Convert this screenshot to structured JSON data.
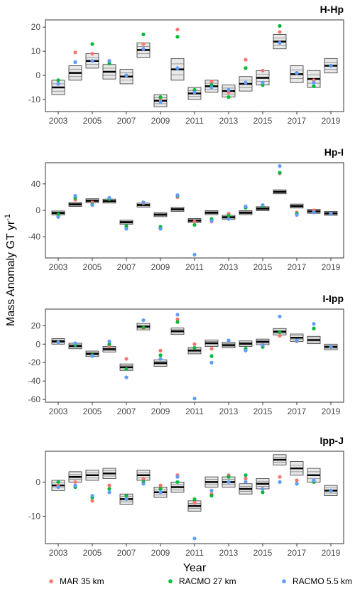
{
  "chart_data": {
    "type": "scatter",
    "ylabel": "Mass Anomaly GT yr",
    "ylabel_superscript": "-1",
    "xlabel": "Year",
    "x_tick_labels": [
      "2003",
      "2005",
      "2007",
      "2009",
      "2011",
      "2013",
      "2015",
      "2017",
      "2019"
    ],
    "years": [
      2003,
      2004,
      2005,
      2006,
      2007,
      2008,
      2009,
      2010,
      2011,
      2012,
      2013,
      2014,
      2015,
      2016,
      2017,
      2018,
      2019
    ],
    "series": [
      {
        "name": "MAR 35 km",
        "color": "#f8766d"
      },
      {
        "name": "RACMO 27 km",
        "color": "#00ba38"
      },
      {
        "name": "RACMO 5.5 km",
        "color": "#619cff"
      }
    ],
    "panels": [
      {
        "title": "H-Hp",
        "ylim": [
          -15,
          23
        ],
        "yticks": [
          -10,
          0,
          10,
          20
        ],
        "grace": [
          {
            "mean": -5,
            "half": 3
          },
          {
            "mean": 1,
            "half": 3
          },
          {
            "mean": 6,
            "half": 3
          },
          {
            "mean": 1.5,
            "half": 3
          },
          {
            "mean": -0.5,
            "half": 3
          },
          {
            "mean": 10.5,
            "half": 3
          },
          {
            "mean": -10.5,
            "half": 2.5
          },
          {
            "mean": 2.5,
            "half": 4.5
          },
          {
            "mean": -7.5,
            "half": 2.5
          },
          {
            "mean": -4.5,
            "half": 2.5
          },
          {
            "mean": -6.5,
            "half": 2.5
          },
          {
            "mean": -3.5,
            "half": 3
          },
          {
            "mean": -1,
            "half": 3
          },
          {
            "mean": 14,
            "half": 3
          },
          {
            "mean": 0.5,
            "half": 3.5
          },
          {
            "mean": -1.5,
            "half": 3.5
          },
          {
            "mean": 4,
            "half": 3
          }
        ],
        "points": [
          [
            -3.5,
            -2,
            -3.5
          ],
          [
            9.5,
            5.5,
            5.5
          ],
          [
            9,
            13,
            6
          ],
          [
            6,
            5,
            6
          ],
          [
            0,
            0,
            0
          ],
          [
            13,
            17,
            11
          ],
          [
            -10,
            -9,
            -11
          ],
          [
            19,
            16,
            3
          ],
          [
            -7,
            -6,
            -7
          ],
          [
            -2.5,
            -4,
            -5
          ],
          [
            -7,
            -9,
            -6
          ],
          [
            6.5,
            3,
            -3
          ],
          [
            2,
            -4,
            -3
          ],
          [
            18,
            20.5,
            13.5
          ],
          [
            1,
            1,
            1
          ],
          [
            -2,
            -4.5,
            -3
          ],
          [
            4,
            4,
            4
          ]
        ]
      },
      {
        "title": "Hp-I",
        "ylim": [
          -72,
          72
        ],
        "yticks": [
          -40,
          0,
          40
        ],
        "grace": [
          {
            "mean": -4,
            "half": 3
          },
          {
            "mean": 9,
            "half": 3
          },
          {
            "mean": 14.5,
            "half": 3
          },
          {
            "mean": 14,
            "half": 3
          },
          {
            "mean": -18,
            "half": 3
          },
          {
            "mean": 8,
            "half": 3
          },
          {
            "mean": -6.5,
            "half": 3
          },
          {
            "mean": 1.5,
            "half": 3
          },
          {
            "mean": -15.5,
            "half": 3
          },
          {
            "mean": -3.5,
            "half": 3
          },
          {
            "mean": -10.5,
            "half": 3
          },
          {
            "mean": -3.5,
            "half": 3
          },
          {
            "mean": 2.5,
            "half": 3
          },
          {
            "mean": 28,
            "half": 3
          },
          {
            "mean": 6.5,
            "half": 3
          },
          {
            "mean": -1.5,
            "half": 3
          },
          {
            "mean": -4.5,
            "half": 3
          }
        ],
        "points": [
          [
            -8,
            -6,
            -10
          ],
          [
            16,
            19,
            22
          ],
          [
            12,
            9,
            8
          ],
          [
            17,
            17,
            19
          ],
          [
            -25,
            -24,
            -28
          ],
          [
            11,
            12,
            12
          ],
          [
            -27,
            -25,
            -28
          ],
          [
            20,
            22,
            23
          ],
          [
            -17,
            -22,
            -67
          ],
          [
            -17,
            -13,
            -16
          ],
          [
            -5,
            -8,
            -13
          ],
          [
            5,
            4,
            6
          ],
          [
            6,
            6,
            8
          ],
          [
            56,
            57,
            67
          ],
          [
            -3,
            -5,
            -7
          ],
          [
            0,
            -3,
            -3
          ],
          [
            -5,
            -5,
            -5
          ]
        ]
      },
      {
        "title": "I-Ipp",
        "ylim": [
          -63,
          38
        ],
        "yticks": [
          -60,
          -40,
          -20,
          0,
          20
        ],
        "grace": [
          {
            "mean": 3,
            "half": 3
          },
          {
            "mean": -2,
            "half": 3
          },
          {
            "mean": -10.5,
            "half": 3
          },
          {
            "mean": -5.5,
            "half": 3
          },
          {
            "mean": -25,
            "half": 3.5
          },
          {
            "mean": 19,
            "half": 3.5
          },
          {
            "mean": -20.5,
            "half": 3.5
          },
          {
            "mean": 14,
            "half": 3.5
          },
          {
            "mean": -7,
            "half": 3.5
          },
          {
            "mean": 1,
            "half": 3.5
          },
          {
            "mean": -1,
            "half": 3
          },
          {
            "mean": 0.5,
            "half": 3
          },
          {
            "mean": 2.5,
            "half": 3
          },
          {
            "mean": 13.5,
            "half": 3.5
          },
          {
            "mean": 7,
            "half": 4
          },
          {
            "mean": 4.5,
            "half": 4
          },
          {
            "mean": -3,
            "half": 3
          }
        ],
        "points": [
          [
            2,
            2,
            2
          ],
          [
            0,
            -1,
            1
          ],
          [
            -12,
            -12,
            -13
          ],
          [
            -2,
            0,
            3
          ],
          [
            -16,
            -27,
            -36
          ],
          [
            17,
            18,
            26
          ],
          [
            -7,
            -12,
            -16
          ],
          [
            27,
            24,
            32
          ],
          [
            0,
            -4,
            -59
          ],
          [
            -5,
            -13,
            -20
          ],
          [
            4,
            4,
            4
          ],
          [
            -5,
            -5,
            -7
          ],
          [
            -3,
            -3,
            -1
          ],
          [
            9,
            13,
            30
          ],
          [
            3,
            4,
            4
          ],
          [
            17,
            17,
            22
          ],
          [
            -3,
            -3,
            -3
          ]
        ]
      },
      {
        "title": "Ipp-J",
        "ylim": [
          -18,
          9
        ],
        "yticks": [
          -10,
          0
        ],
        "grace": [
          {
            "mean": -1,
            "half": 1.5
          },
          {
            "mean": 1.5,
            "half": 1.5
          },
          {
            "mean": 2,
            "half": 1.5
          },
          {
            "mean": 2.5,
            "half": 1.5
          },
          {
            "mean": -5,
            "half": 1.5
          },
          {
            "mean": 2,
            "half": 1.5
          },
          {
            "mean": -3,
            "half": 1.5
          },
          {
            "mean": -1.5,
            "half": 1.5
          },
          {
            "mean": -7,
            "half": 1.5
          },
          {
            "mean": 0,
            "half": 1.5
          },
          {
            "mean": 0,
            "half": 1.5
          },
          {
            "mean": -2,
            "half": 1.5
          },
          {
            "mean": -0.5,
            "half": 1.5
          },
          {
            "mean": 6.5,
            "half": 1.5
          },
          {
            "mean": 4,
            "half": 2
          },
          {
            "mean": 2,
            "half": 2
          },
          {
            "mean": -2.5,
            "half": 1.5
          }
        ],
        "points": [
          [
            -1,
            0,
            -1.5
          ],
          [
            0,
            -1.5,
            -1
          ],
          [
            -5.5,
            -4.5,
            -4
          ],
          [
            -1,
            -2,
            -3
          ],
          [
            -4,
            -4,
            -5
          ],
          [
            1,
            0,
            -0.5
          ],
          [
            -1,
            -2,
            -3
          ],
          [
            2,
            0,
            1.5
          ],
          [
            -6,
            -5,
            -16.5
          ],
          [
            -3.5,
            -4,
            -2.5
          ],
          [
            2,
            1.5,
            0
          ],
          [
            1,
            2,
            0
          ],
          [
            -2,
            -3,
            -2
          ],
          [
            1.5,
            0,
            0
          ],
          [
            0.5,
            -0.5,
            -0.5
          ],
          [
            0,
            0,
            0.5
          ],
          [
            -2.5,
            -2.5,
            -2.5
          ]
        ]
      }
    ]
  }
}
